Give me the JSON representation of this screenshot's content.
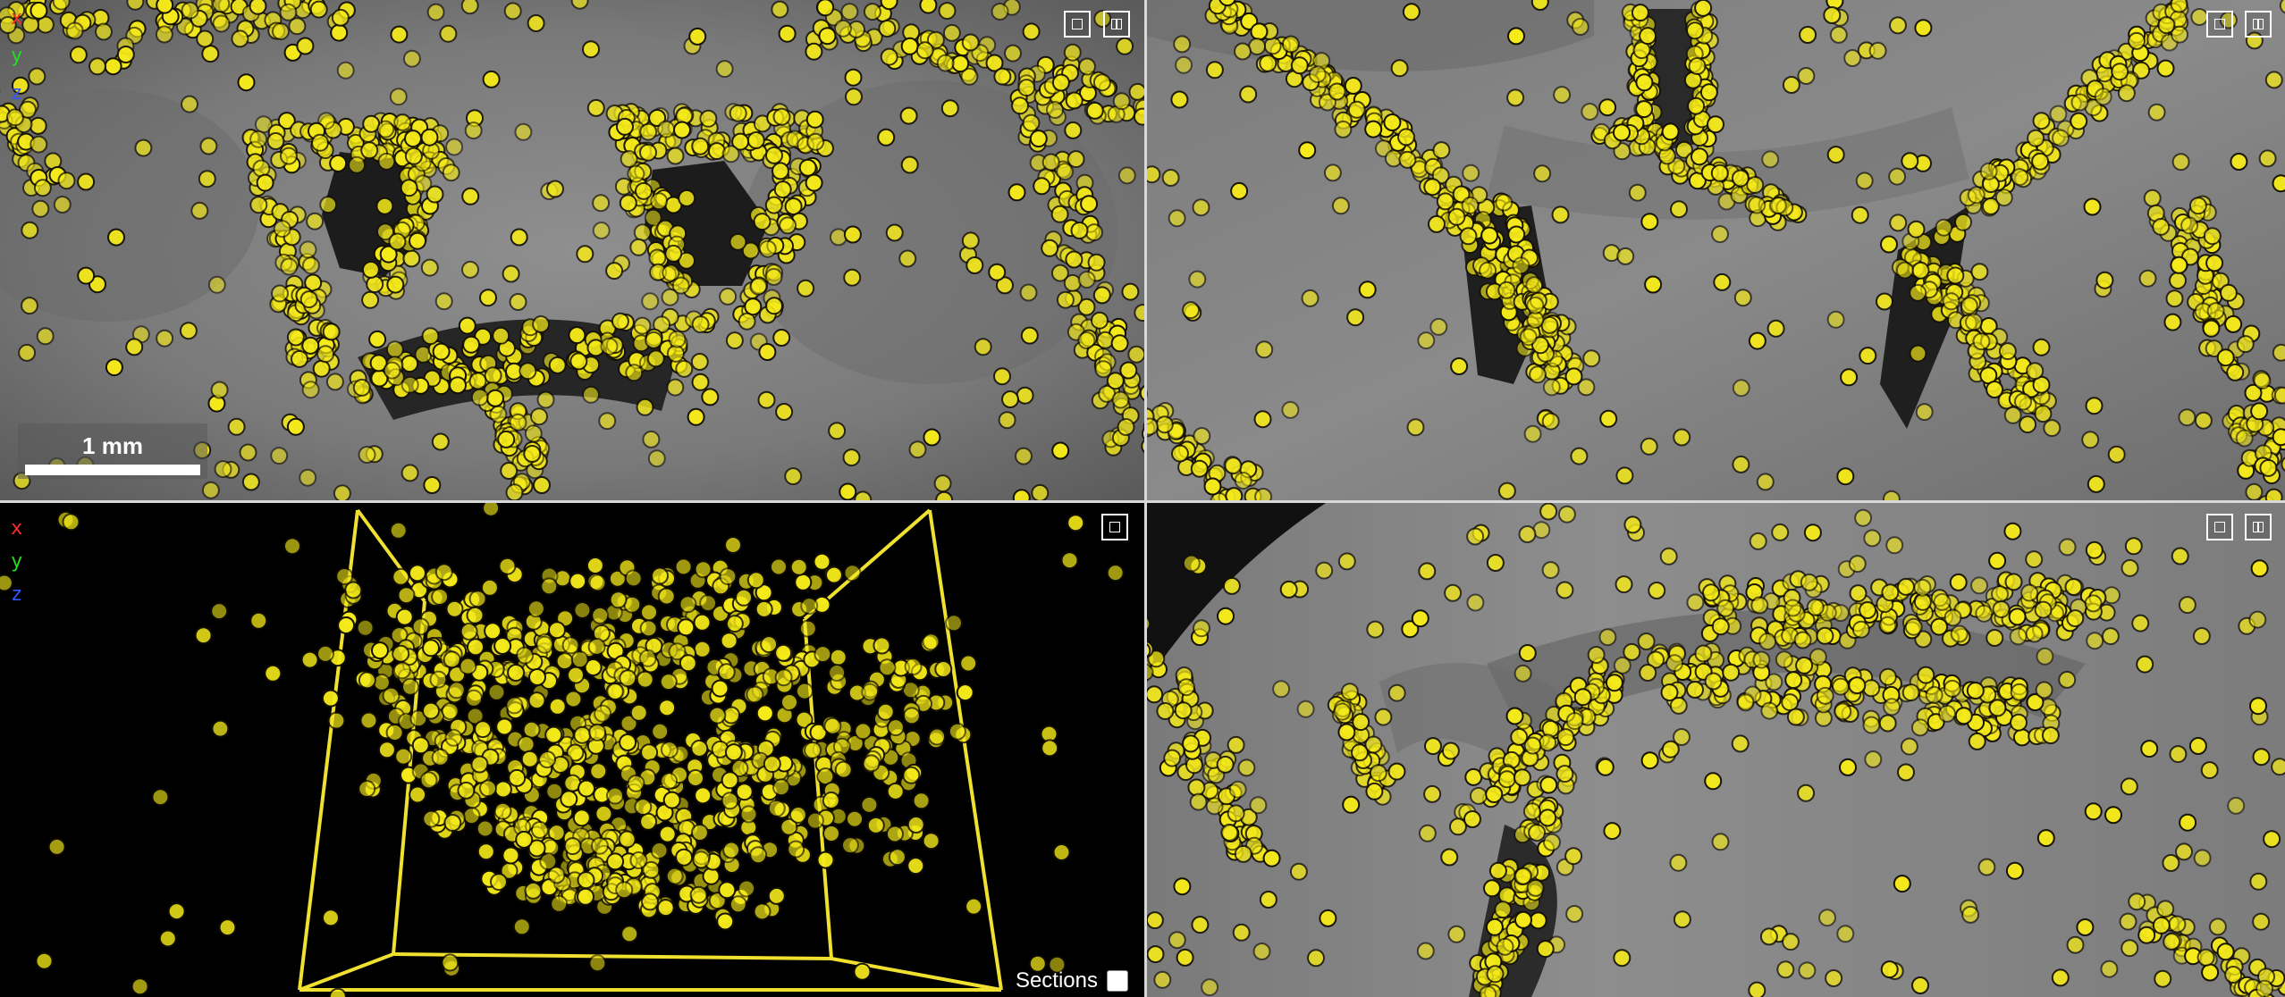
{
  "colors": {
    "axis_x": "#ff2a2a",
    "axis_y": "#22dd22",
    "axis_z": "#3355ff",
    "marker_fill": "#f5ea1a",
    "marker_stroke": "#141000",
    "bounding_box": "#f0e030",
    "divider": "#d8d8d8"
  },
  "axes": {
    "x": "x",
    "y": "y",
    "z": "z"
  },
  "top_left": {
    "scalebar_label": "1 mm",
    "controls": [
      "maximize-icon",
      "split-view-icon"
    ]
  },
  "top_right": {
    "controls": [
      "maximize-icon",
      "split-view-icon"
    ]
  },
  "bottom_left": {
    "controls": [
      "maximize-icon"
    ],
    "sections_label": "Sections",
    "sections_checked": false
  },
  "bottom_right": {
    "controls": [
      "maximize-icon",
      "split-view-icon"
    ]
  }
}
